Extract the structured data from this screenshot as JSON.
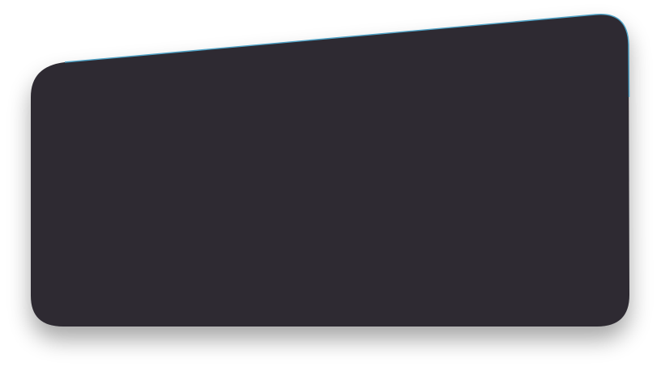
{
  "panel": {
    "fill_color": "#2d2b33",
    "edge_highlight_color": "#4fa3c7",
    "shadow_color": "#000000"
  }
}
